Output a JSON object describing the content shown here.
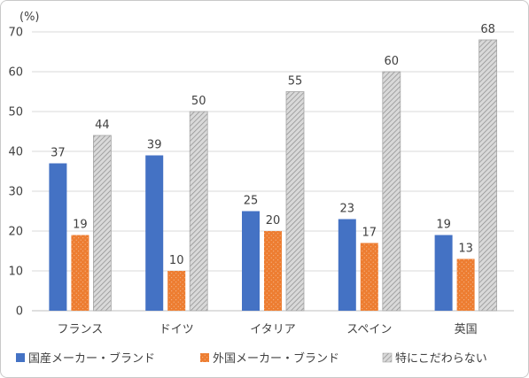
{
  "chart_data": {
    "type": "bar",
    "unit_label": "(%)",
    "categories": [
      "フランス",
      "ドイツ",
      "イタリア",
      "スペイン",
      "英国"
    ],
    "series": [
      {
        "name": "国産メーカー・ブランド",
        "values": [
          37,
          39,
          25,
          23,
          19
        ],
        "color": "#4472c4",
        "pattern": "solid"
      },
      {
        "name": "外国メーカー・ブランド",
        "values": [
          19,
          10,
          20,
          17,
          13
        ],
        "color": "#ed7d31",
        "pattern": "dotted"
      },
      {
        "name": "特にこだわらない",
        "values": [
          44,
          50,
          55,
          60,
          68
        ],
        "color": "#bfbfbf",
        "pattern": "hatched"
      }
    ],
    "ylim": [
      0,
      70
    ],
    "yticks": [
      0,
      10,
      20,
      30,
      40,
      50,
      60,
      70
    ],
    "grid": true,
    "legend_position": "bottom"
  }
}
